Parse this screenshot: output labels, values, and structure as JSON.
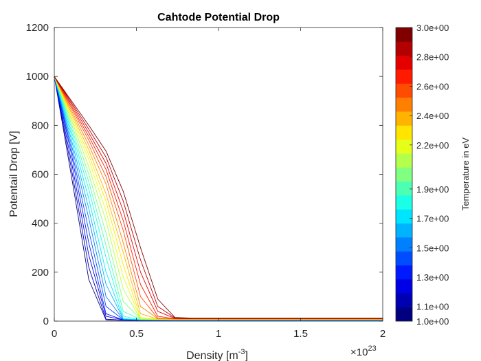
{
  "chart_data": {
    "type": "line",
    "title": "Cahtode Potential Drop",
    "xlabel": "Density [m",
    "xlabel_sup": "-3",
    "xlabel_end": "]",
    "ylabel": "Potentail Drop [V]",
    "x_exponent_prefix": "×10",
    "x_exponent": "23",
    "xlim": [
      0,
      2
    ],
    "ylim": [
      0,
      1200
    ],
    "x_ticks": [
      0,
      0.5,
      1,
      1.5,
      2
    ],
    "x_tick_labels": [
      "0",
      "0.5",
      "1",
      "1.5",
      "2"
    ],
    "y_ticks": [
      0,
      200,
      400,
      600,
      800,
      1000,
      1200
    ],
    "y_tick_labels": [
      "0",
      "200",
      "400",
      "600",
      "800",
      "1000",
      "1200"
    ],
    "grid": false,
    "x": [
      0,
      0.105,
      0.21,
      0.315,
      0.42,
      0.525,
      0.63,
      0.735,
      0.84,
      1.05,
      1.26,
      1.47,
      1.68,
      1.89,
      2.0
    ],
    "series": [
      {
        "t": 1.0,
        "values": [
          1000,
          590,
          170,
          5,
          3,
          2,
          2,
          2,
          2,
          2,
          2,
          2,
          2,
          2,
          2
        ]
      },
      {
        "t": 1.1,
        "values": [
          1000,
          620,
          220,
          8,
          4,
          3,
          2,
          2,
          2,
          2,
          2,
          2,
          2,
          2,
          2
        ]
      },
      {
        "t": 1.2,
        "values": [
          1000,
          650,
          270,
          20,
          5,
          3,
          3,
          2,
          2,
          2,
          2,
          2,
          2,
          2,
          2
        ]
      },
      {
        "t": 1.3,
        "values": [
          1000,
          680,
          320,
          30,
          5,
          4,
          3,
          3,
          3,
          3,
          3,
          3,
          3,
          3,
          3
        ]
      },
      {
        "t": 1.4,
        "values": [
          1000,
          700,
          370,
          60,
          6,
          4,
          4,
          3,
          3,
          3,
          3,
          3,
          3,
          3,
          3
        ]
      },
      {
        "t": 1.5,
        "values": [
          1000,
          720,
          420,
          100,
          7,
          5,
          4,
          4,
          4,
          4,
          4,
          4,
          4,
          4,
          4
        ]
      },
      {
        "t": 1.6,
        "values": [
          1000,
          740,
          460,
          150,
          9,
          5,
          5,
          4,
          4,
          4,
          4,
          4,
          4,
          4,
          4
        ]
      },
      {
        "t": 1.7,
        "values": [
          1000,
          760,
          500,
          200,
          10,
          6,
          5,
          5,
          5,
          5,
          5,
          5,
          5,
          5,
          5
        ]
      },
      {
        "t": 1.8,
        "values": [
          1000,
          775,
          540,
          260,
          20,
          6,
          6,
          5,
          5,
          5,
          5,
          5,
          5,
          5,
          5
        ]
      },
      {
        "t": 1.9,
        "values": [
          1000,
          790,
          570,
          310,
          40,
          7,
          6,
          6,
          6,
          6,
          6,
          6,
          6,
          6,
          6
        ]
      },
      {
        "t": 2.0,
        "values": [
          1000,
          805,
          600,
          360,
          80,
          8,
          7,
          6,
          6,
          6,
          6,
          6,
          6,
          6,
          6
        ]
      },
      {
        "t": 2.1,
        "values": [
          1000,
          820,
          630,
          410,
          130,
          9,
          7,
          7,
          7,
          7,
          7,
          7,
          7,
          7,
          7
        ]
      },
      {
        "t": 2.2,
        "values": [
          1000,
          830,
          660,
          450,
          180,
          10,
          8,
          7,
          7,
          7,
          7,
          7,
          7,
          7,
          7
        ]
      },
      {
        "t": 2.3,
        "values": [
          1000,
          840,
          680,
          490,
          230,
          15,
          8,
          8,
          8,
          8,
          8,
          8,
          8,
          8,
          8
        ]
      },
      {
        "t": 2.4,
        "values": [
          1000,
          850,
          700,
          520,
          280,
          30,
          9,
          8,
          8,
          8,
          8,
          8,
          8,
          8,
          8
        ]
      },
      {
        "t": 2.5,
        "values": [
          1000,
          860,
          720,
          560,
          320,
          60,
          10,
          9,
          9,
          9,
          9,
          9,
          9,
          9,
          9
        ]
      },
      {
        "t": 2.6,
        "values": [
          1000,
          870,
          740,
          590,
          370,
          100,
          12,
          9,
          9,
          9,
          9,
          9,
          9,
          9,
          9
        ]
      },
      {
        "t": 2.7,
        "values": [
          1000,
          878,
          755,
          620,
          410,
          150,
          20,
          10,
          10,
          10,
          10,
          10,
          10,
          10,
          10
        ]
      },
      {
        "t": 2.8,
        "values": [
          1000,
          886,
          770,
          645,
          450,
          200,
          40,
          11,
          10,
          10,
          10,
          10,
          10,
          10,
          10
        ]
      },
      {
        "t": 2.9,
        "values": [
          1000,
          893,
          785,
          670,
          490,
          250,
          60,
          13,
          11,
          11,
          11,
          11,
          11,
          11,
          11
        ]
      },
      {
        "t": 3.0,
        "values": [
          1000,
          900,
          800,
          695,
          530,
          300,
          90,
          15,
          12,
          12,
          12,
          12,
          12,
          12,
          12
        ]
      }
    ],
    "colorbar": {
      "label": "Temperature in eV",
      "min": 1.0,
      "max": 3.0,
      "levels": 21,
      "colormap": "jet",
      "tick_values": [
        1.0,
        1.1,
        1.3,
        1.5,
        1.7,
        1.9,
        2.2,
        2.4,
        2.6,
        2.8,
        3.0
      ],
      "tick_labels": [
        "1.0e+00",
        "1.1e+00",
        "1.3e+00",
        "1.5e+00",
        "1.7e+00",
        "1.9e+00",
        "2.2e+00",
        "2.4e+00",
        "2.6e+00",
        "2.8e+00",
        "3.0e+00"
      ]
    }
  }
}
